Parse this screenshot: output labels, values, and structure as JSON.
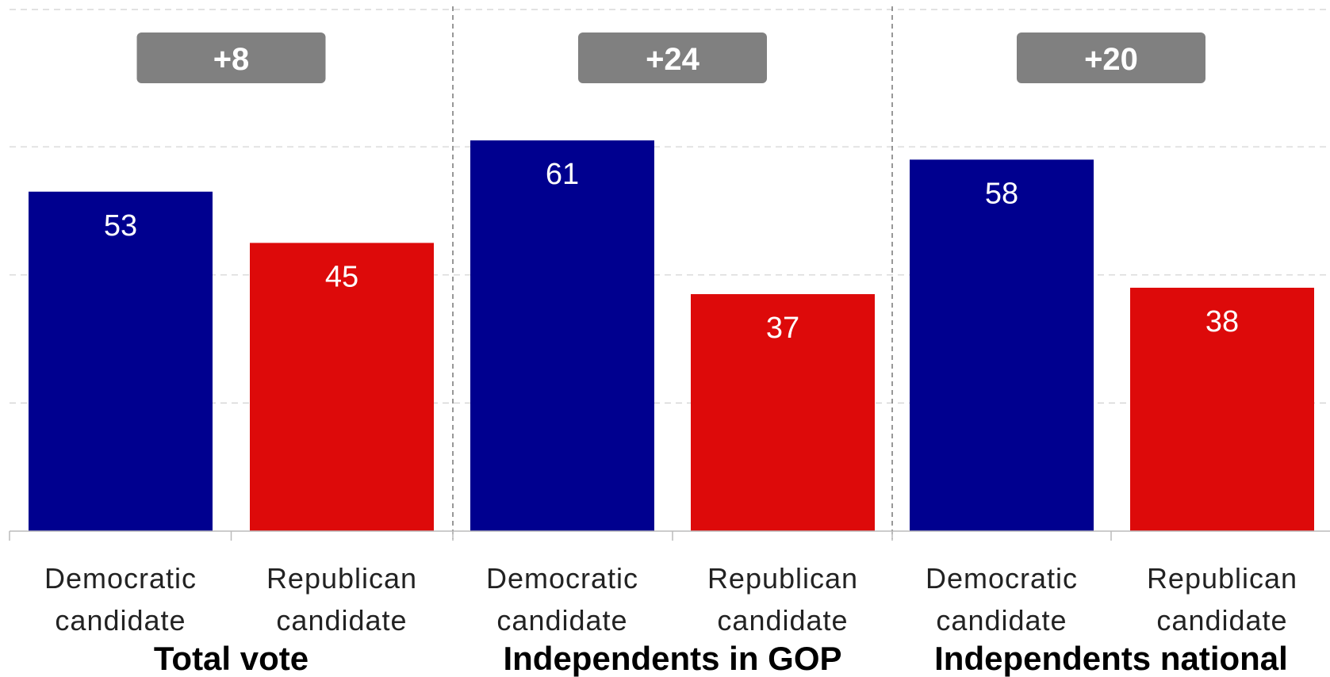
{
  "chart_data": {
    "type": "bar",
    "ylim": [
      0,
      70
    ],
    "grid": true,
    "groups": [
      {
        "label": "Total vote",
        "margin": "+8",
        "bars": [
          {
            "category": [
              "Democratic",
              "candidate"
            ],
            "value": 53,
            "color": "#00008f"
          },
          {
            "category": [
              "Republican",
              "candidate"
            ],
            "value": 45,
            "color": "#dd0a0a"
          }
        ]
      },
      {
        "label": "Independents in GOP",
        "margin": "+24",
        "bars": [
          {
            "category": [
              "Democratic",
              "candidate"
            ],
            "value": 61,
            "color": "#00008f"
          },
          {
            "category": [
              "Republican",
              "candidate"
            ],
            "value": 37,
            "color": "#dd0a0a"
          }
        ]
      },
      {
        "label": "Independents national",
        "margin": "+20",
        "bars": [
          {
            "category": [
              "Democratic",
              "candidate"
            ],
            "value": 58,
            "color": "#00008f"
          },
          {
            "category": [
              "Republican",
              "candidate"
            ],
            "value": 38,
            "color": "#dd0a0a"
          }
        ]
      }
    ]
  },
  "colors": {
    "democratic": "#00008f",
    "republican": "#dd0a0a",
    "badge": "#808080"
  }
}
